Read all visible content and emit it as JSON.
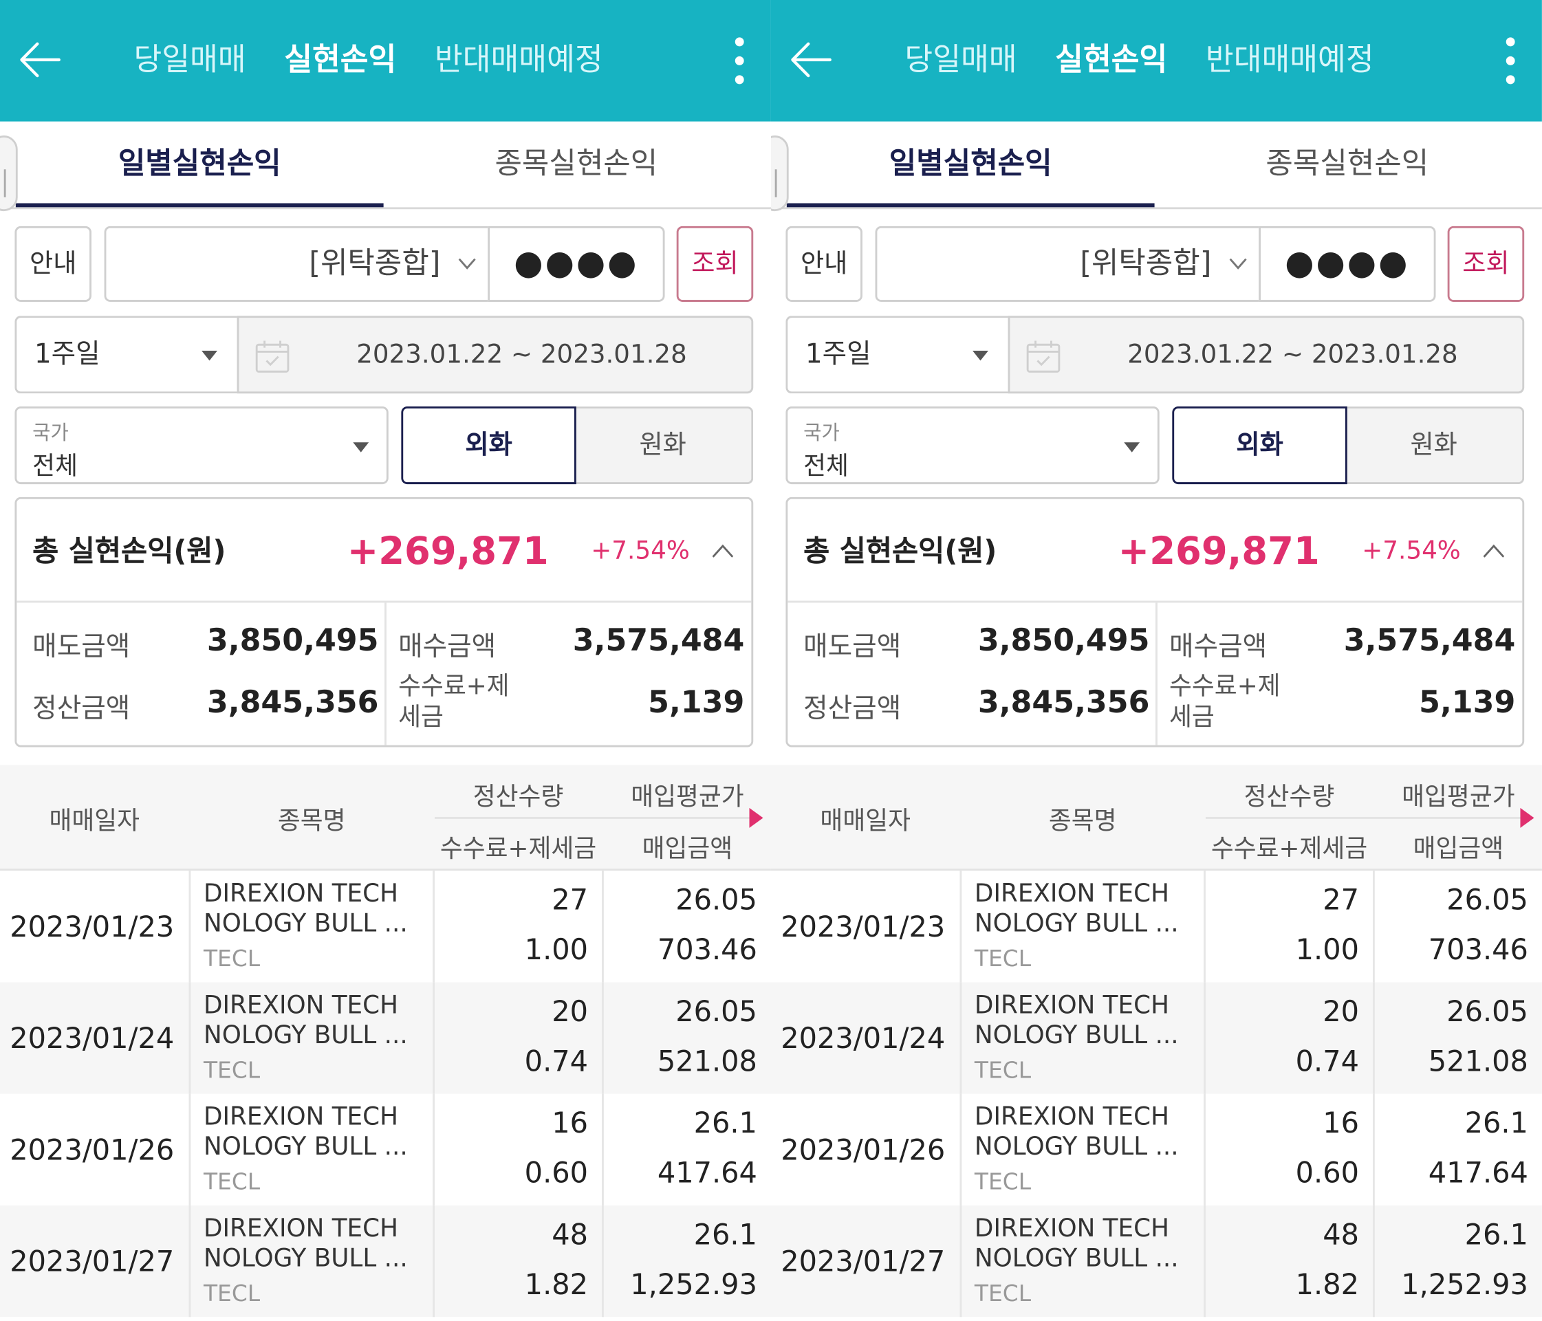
{
  "colors": {
    "header_bg": "#17b3c2",
    "accent_pink": "#e0306e",
    "navy": "#1a1f4e"
  },
  "header": {
    "back_icon": "arrow-left-icon",
    "tabs": [
      {
        "label": "당일매매",
        "active": false
      },
      {
        "label": "실현손익",
        "active": true
      },
      {
        "label": "반대매매예정",
        "active": false
      }
    ],
    "menu_icon": "kebab-menu-icon"
  },
  "subtabs": [
    {
      "label": "일별실현손익",
      "active": true
    },
    {
      "label": "종목실현손익",
      "active": false
    }
  ],
  "controls": {
    "guide_label": "안내",
    "account_value": "[위탁종합]",
    "password_mask": "●●●●",
    "query_label": "조회",
    "period_value": "1주일",
    "date_range": "2023.01.22 ~ 2023.01.28",
    "country_label": "국가",
    "country_value": "전체",
    "currency_fx_label": "외화",
    "currency_krw_label": "원화",
    "currency_selected": "외화"
  },
  "summary": {
    "title": "총 실현손익(원)",
    "total": "+269,871",
    "percent": "+7.54%",
    "sell_label": "매도금액",
    "sell_value": "3,850,495",
    "buy_label": "매수금액",
    "buy_value": "3,575,484",
    "settle_label": "정산금액",
    "settle_value": "3,845,356",
    "fee_label_line1": "수수료+제",
    "fee_label_line2": "세금",
    "fee_value": "5,139"
  },
  "table": {
    "headers": {
      "date": "매매일자",
      "name": "종목명",
      "qty": "정산수량",
      "fee": "수수료+제세금",
      "avg_price": "매입평균가",
      "buy_amount": "매입금액"
    },
    "rows": [
      {
        "date": "2023/01/23",
        "name_line1": "DIREXION TECH",
        "name_line2": "NOLOGY BULL ...",
        "ticker": "TECL",
        "qty": "27",
        "fee": "1.00",
        "avg_price": "26.05",
        "buy_amount": "703.46"
      },
      {
        "date": "2023/01/24",
        "name_line1": "DIREXION TECH",
        "name_line2": "NOLOGY BULL ...",
        "ticker": "TECL",
        "qty": "20",
        "fee": "0.74",
        "avg_price": "26.05",
        "buy_amount": "521.08"
      },
      {
        "date": "2023/01/26",
        "name_line1": "DIREXION TECH",
        "name_line2": "NOLOGY BULL ...",
        "ticker": "TECL",
        "qty": "16",
        "fee": "0.60",
        "avg_price": "26.1",
        "buy_amount": "417.64"
      },
      {
        "date": "2023/01/27",
        "name_line1": "DIREXION TECH",
        "name_line2": "NOLOGY BULL ...",
        "ticker": "TECL",
        "qty": "48",
        "fee": "1.82",
        "avg_price": "26.1",
        "buy_amount": "1,252.93"
      }
    ]
  }
}
